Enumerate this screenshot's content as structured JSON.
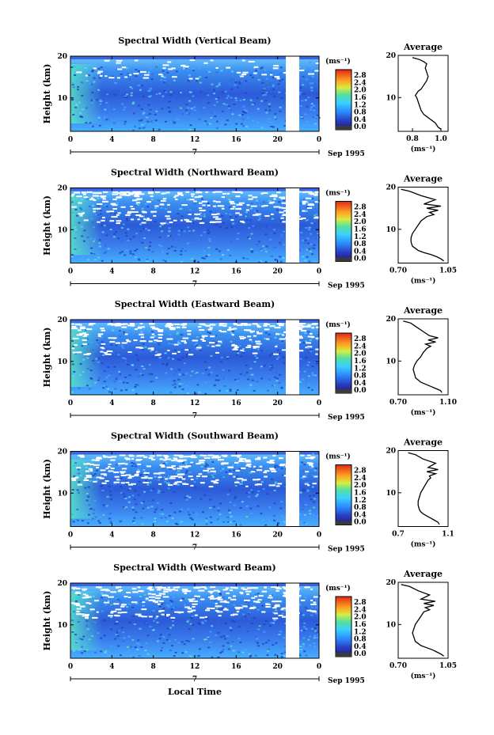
{
  "panels": [
    {
      "title": "Spectral Width (Vertical Beam)",
      "avg_ticks": [
        "0.8",
        "1.0"
      ],
      "avg_range": [
        0.7,
        1.05
      ]
    },
    {
      "title": "Spectral Width (Northward Beam)",
      "avg_ticks": [
        "0.70",
        "1.05"
      ],
      "avg_range": [
        0.7,
        1.05
      ]
    },
    {
      "title": "Spectral Width (Eastward Beam)",
      "avg_ticks": [
        "0.70",
        "1.10"
      ],
      "avg_range": [
        0.7,
        1.1
      ]
    },
    {
      "title": "Spectral Width (Southward Beam)",
      "avg_ticks": [
        "0.7",
        "1.1"
      ],
      "avg_range": [
        0.7,
        1.1
      ]
    },
    {
      "title": "Spectral Width (Westward Beam)",
      "avg_ticks": [
        "0.70",
        "1.05"
      ],
      "avg_range": [
        0.7,
        1.05
      ]
    }
  ],
  "common": {
    "ylabel": "Height (km)",
    "yticks": [
      "20",
      "10"
    ],
    "xticks": [
      "0",
      "4",
      "8",
      "12",
      "16",
      "20",
      "0"
    ],
    "day": "7",
    "date": "Sep 1995",
    "units": "(ms⁻¹)",
    "avg_title": "Average",
    "avg_ylabel_ticks": [
      "20",
      "10"
    ],
    "xlabel": "Local Time",
    "colorbar_ticks": [
      "2.8",
      "2.4",
      "2.0",
      "1.6",
      "1.2",
      "0.8",
      "0.4",
      "0.0"
    ],
    "colors": {
      "low": "#1a1a8c",
      "mid": "#2aa6ff",
      "high": "#e83010",
      "gap": "#ffffff"
    }
  },
  "chart_data": [
    {
      "type": "heatmap",
      "title": "Spectral Width (Vertical Beam)",
      "xlabel": "",
      "ylabel": "Height (km)",
      "xlim": [
        0,
        24
      ],
      "ylim": [
        2,
        20
      ],
      "clim": [
        0.0,
        3.0
      ],
      "units": "(ms⁻¹)",
      "data_gap_x": [
        20.8,
        22.2
      ]
    },
    {
      "type": "line",
      "title": "Average",
      "xlabel": "(ms⁻¹)",
      "ylabel": "",
      "xlim": [
        0.7,
        1.05
      ],
      "ylim": [
        2,
        20
      ],
      "x": [
        1.0,
        0.98,
        0.97,
        0.96,
        0.94,
        0.92,
        0.9,
        0.88,
        0.86,
        0.85,
        0.84,
        0.83,
        0.82,
        0.83,
        0.84,
        0.86,
        0.88,
        0.9,
        0.91,
        0.9,
        0.89,
        0.9,
        0.88,
        0.85,
        0.8
      ],
      "y": [
        2.5,
        3,
        3.5,
        4,
        4.5,
        5,
        5.5,
        6,
        7,
        8,
        9,
        10,
        10.5,
        11,
        11.5,
        12,
        13,
        14,
        15,
        16,
        17,
        18,
        18.5,
        19,
        19.5
      ]
    },
    {
      "type": "heatmap",
      "title": "Spectral Width (Northward Beam)",
      "xlabel": "",
      "ylabel": "Height (km)",
      "xlim": [
        0,
        24
      ],
      "ylim": [
        2,
        20
      ],
      "clim": [
        0.0,
        3.0
      ],
      "units": "(ms⁻¹)",
      "data_gap_x": [
        20.8,
        22.2
      ]
    },
    {
      "type": "line",
      "title": "Average",
      "xlabel": "(ms⁻¹)",
      "ylabel": "",
      "xlim": [
        0.7,
        1.05
      ],
      "ylim": [
        2,
        20
      ],
      "x": [
        1.02,
        1.0,
        0.97,
        0.93,
        0.88,
        0.84,
        0.82,
        0.8,
        0.79,
        0.79,
        0.8,
        0.82,
        0.84,
        0.86,
        0.9,
        0.95,
        0.92,
        0.98,
        0.9,
        1.0,
        0.88,
        0.96,
        0.86,
        0.78,
        0.72
      ],
      "y": [
        2.5,
        3,
        3.5,
        4,
        4.5,
        5,
        5.5,
        6,
        7,
        8,
        9,
        10,
        11,
        12,
        13,
        13.5,
        14,
        14.5,
        15,
        15.5,
        16,
        17,
        18,
        19,
        19.5
      ]
    },
    {
      "type": "heatmap",
      "title": "Spectral Width (Eastward Beam)",
      "xlabel": "",
      "ylabel": "Height (km)",
      "xlim": [
        0,
        24
      ],
      "ylim": [
        2,
        20
      ],
      "clim": [
        0.0,
        3.0
      ],
      "units": "(ms⁻¹)",
      "data_gap_x": [
        20.8,
        22.2
      ]
    },
    {
      "type": "line",
      "title": "Average",
      "xlabel": "(ms⁻¹)",
      "ylabel": "",
      "xlim": [
        0.7,
        1.1
      ],
      "ylim": [
        2,
        20
      ],
      "x": [
        1.05,
        1.04,
        1.0,
        0.96,
        0.92,
        0.88,
        0.86,
        0.84,
        0.83,
        0.82,
        0.83,
        0.85,
        0.88,
        0.9,
        0.93,
        0.96,
        0.92,
        1.0,
        0.94,
        1.02,
        0.95,
        0.9,
        0.85,
        0.8,
        0.74
      ],
      "y": [
        2.5,
        3,
        3.5,
        4,
        4.5,
        5,
        5.5,
        6,
        7,
        8,
        9,
        10,
        11,
        12,
        13,
        13.5,
        14,
        14.5,
        15,
        15.5,
        16,
        17,
        18,
        19,
        19.5
      ]
    },
    {
      "type": "heatmap",
      "title": "Spectral Width (Southward Beam)",
      "xlabel": "",
      "ylabel": "Height (km)",
      "xlim": [
        0,
        24
      ],
      "ylim": [
        2,
        20
      ],
      "clim": [
        0.0,
        3.0
      ],
      "units": "(ms⁻¹)",
      "data_gap_x": [
        20.8,
        22.2
      ]
    },
    {
      "type": "line",
      "title": "Average",
      "xlabel": "(ms⁻¹)",
      "ylabel": "",
      "xlim": [
        0.7,
        1.1
      ],
      "ylim": [
        2,
        20
      ],
      "x": [
        1.03,
        1.02,
        0.99,
        0.96,
        0.93,
        0.9,
        0.88,
        0.87,
        0.86,
        0.86,
        0.87,
        0.88,
        0.9,
        0.92,
        0.94,
        0.96,
        0.95,
        1.0,
        0.93,
        1.02,
        0.94,
        1.0,
        0.9,
        0.84,
        0.78
      ],
      "y": [
        2.5,
        3,
        3.5,
        4,
        4.5,
        5,
        5.5,
        6,
        7,
        8,
        9,
        10,
        11,
        12,
        13,
        13.5,
        14,
        14.5,
        15,
        15.5,
        16,
        17,
        18,
        19,
        19.5
      ]
    },
    {
      "type": "heatmap",
      "title": "Spectral Width (Westward Beam)",
      "xlabel": "Local Time",
      "ylabel": "Height (km)",
      "xlim": [
        0,
        24
      ],
      "ylim": [
        2,
        20
      ],
      "clim": [
        0.0,
        3.0
      ],
      "units": "(ms⁻¹)",
      "data_gap_x": [
        20.8,
        22.2
      ]
    },
    {
      "type": "line",
      "title": "Average",
      "xlabel": "(ms⁻¹)",
      "ylabel": "",
      "xlim": [
        0.7,
        1.05
      ],
      "ylim": [
        2,
        20
      ],
      "x": [
        1.02,
        1.0,
        0.97,
        0.94,
        0.9,
        0.86,
        0.84,
        0.82,
        0.81,
        0.8,
        0.81,
        0.82,
        0.84,
        0.86,
        0.88,
        0.92,
        0.89,
        0.95,
        0.88,
        0.96,
        0.86,
        0.92,
        0.84,
        0.78,
        0.72
      ],
      "y": [
        2.5,
        3,
        3.5,
        4,
        4.5,
        5,
        5.5,
        6,
        7,
        8,
        9,
        10,
        11,
        12,
        13,
        13.5,
        14,
        14.5,
        15,
        15.5,
        16,
        17,
        18,
        19,
        19.5
      ]
    }
  ]
}
